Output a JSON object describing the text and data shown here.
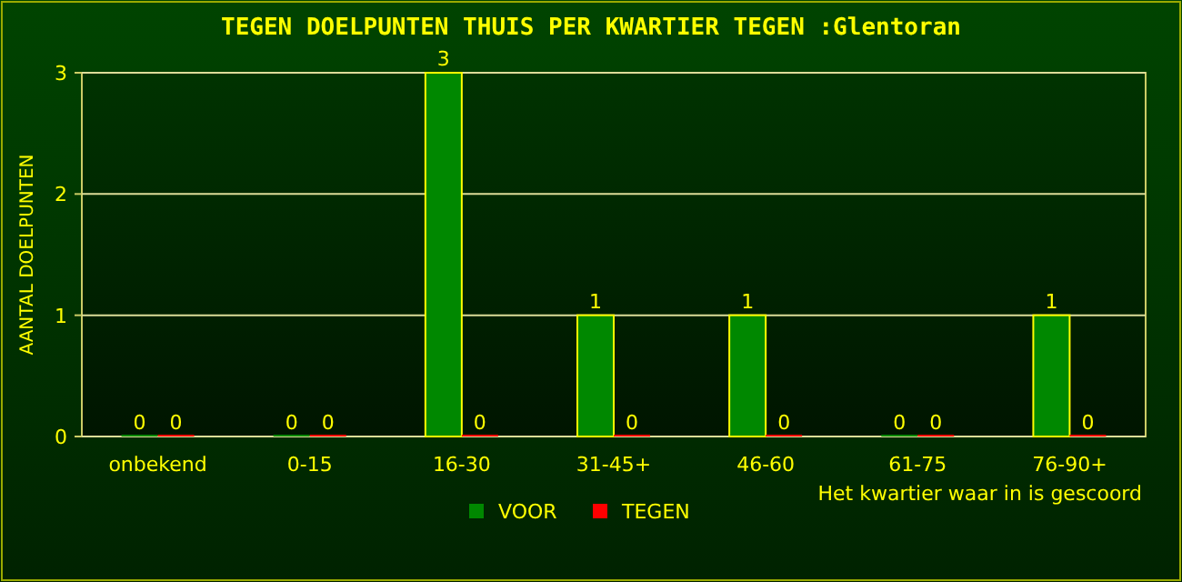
{
  "chart_data": {
    "type": "bar",
    "title": "TEGEN DOELPUNTEN THUIS PER KWARTIER TEGEN :Glentoran",
    "xlabel": "Het kwartier waar in is gescoord",
    "ylabel": "AANTAL DOELPUNTEN",
    "categories": [
      "onbekend",
      "0-15",
      "16-30",
      "31-45+",
      "46-60",
      "61-75",
      "76-90+"
    ],
    "series": [
      {
        "name": "VOOR",
        "color": "#008800",
        "values": [
          0,
          0,
          3,
          1,
          1,
          0,
          1
        ]
      },
      {
        "name": "TEGEN",
        "color": "#ff0000",
        "values": [
          0,
          0,
          0,
          0,
          0,
          0,
          0
        ]
      }
    ],
    "ylim": [
      0,
      3
    ],
    "yticks": [
      0,
      1,
      2,
      3
    ],
    "grid": "y",
    "legend": "bottom",
    "data_labels": true
  }
}
